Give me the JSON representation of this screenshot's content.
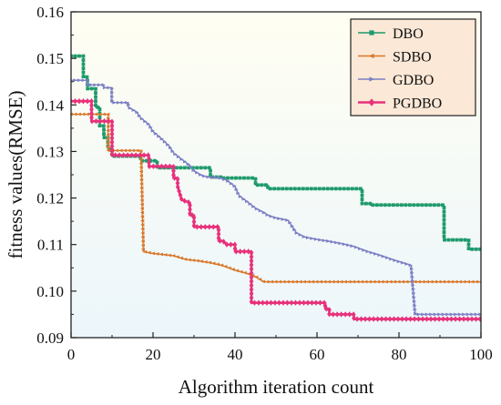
{
  "chart_data": {
    "type": "line",
    "title": "",
    "xlabel": "Algorithm iteration count",
    "ylabel": "fitness values(RMSE)",
    "xlim": [
      0,
      100
    ],
    "ylim": [
      0.09,
      0.16
    ],
    "x_ticks": [
      "0",
      "20",
      "40",
      "60",
      "80",
      "100"
    ],
    "y_ticks": [
      "0.09",
      "0.10",
      "0.11",
      "0.12",
      "0.13",
      "0.14",
      "0.15",
      "0.16"
    ],
    "grid": false,
    "legend_position": "top-right",
    "background": "light gradient (pale yellow top to pale blue bottom)",
    "series": [
      {
        "name": "DBO",
        "color": "#1f9a6c",
        "marker": "square",
        "points": [
          [
            0,
            0.1505
          ],
          [
            3,
            0.1505
          ],
          [
            3,
            0.146
          ],
          [
            4,
            0.146
          ],
          [
            4,
            0.1435
          ],
          [
            6,
            0.1435
          ],
          [
            6,
            0.1395
          ],
          [
            7,
            0.1395
          ],
          [
            7,
            0.1355
          ],
          [
            8,
            0.1355
          ],
          [
            8,
            0.133
          ],
          [
            9,
            0.133
          ],
          [
            9,
            0.1305
          ],
          [
            10,
            0.1305
          ],
          [
            10,
            0.129
          ],
          [
            17,
            0.129
          ],
          [
            17,
            0.128
          ],
          [
            21,
            0.128
          ],
          [
            21,
            0.1265
          ],
          [
            34,
            0.1265
          ],
          [
            34,
            0.1245
          ],
          [
            37,
            0.1245
          ],
          [
            37,
            0.1243
          ],
          [
            45,
            0.1243
          ],
          [
            45,
            0.1228
          ],
          [
            48,
            0.1228
          ],
          [
            48,
            0.122
          ],
          [
            71,
            0.122
          ],
          [
            71,
            0.1188
          ],
          [
            73,
            0.1188
          ],
          [
            73,
            0.1185
          ],
          [
            91,
            0.1185
          ],
          [
            91,
            0.111
          ],
          [
            97,
            0.111
          ],
          [
            97,
            0.109
          ],
          [
            100,
            0.109
          ]
        ]
      },
      {
        "name": "SDBO",
        "color": "#d9772a",
        "marker": "triangle-left",
        "points": [
          [
            0,
            0.138
          ],
          [
            9,
            0.138
          ],
          [
            9,
            0.1302
          ],
          [
            17,
            0.1302
          ],
          [
            17.6,
            0.1085
          ],
          [
            20,
            0.1081
          ],
          [
            25,
            0.1076
          ],
          [
            28,
            0.1068
          ],
          [
            31,
            0.1065
          ],
          [
            34,
            0.1061
          ],
          [
            37,
            0.1055
          ],
          [
            40,
            0.1045
          ],
          [
            43,
            0.1038
          ],
          [
            45,
            0.1031
          ],
          [
            47,
            0.102
          ],
          [
            100,
            0.102
          ]
        ]
      },
      {
        "name": "GDBO",
        "color": "#7b7fc4",
        "marker": "triangle-right",
        "points": [
          [
            0,
            0.1453
          ],
          [
            4,
            0.1453
          ],
          [
            4,
            0.1443
          ],
          [
            8,
            0.1443
          ],
          [
            8,
            0.1437
          ],
          [
            10,
            0.1437
          ],
          [
            10,
            0.1405
          ],
          [
            14,
            0.1405
          ],
          [
            14,
            0.1395
          ],
          [
            16,
            0.1385
          ],
          [
            17,
            0.1372
          ],
          [
            19,
            0.1358
          ],
          [
            20,
            0.1343
          ],
          [
            22,
            0.1328
          ],
          [
            24,
            0.1311
          ],
          [
            25,
            0.1297
          ],
          [
            27,
            0.1283
          ],
          [
            29,
            0.127
          ],
          [
            30,
            0.1258
          ],
          [
            32,
            0.1248
          ],
          [
            34,
            0.1244
          ],
          [
            36,
            0.1244
          ],
          [
            38,
            0.1238
          ],
          [
            40,
            0.1225
          ],
          [
            41,
            0.1205
          ],
          [
            43,
            0.1192
          ],
          [
            45,
            0.1178
          ],
          [
            47,
            0.1169
          ],
          [
            48,
            0.1163
          ],
          [
            50,
            0.1157
          ],
          [
            53,
            0.1152
          ],
          [
            55,
            0.1125
          ],
          [
            57,
            0.1116
          ],
          [
            60,
            0.1111
          ],
          [
            63,
            0.1107
          ],
          [
            66,
            0.1102
          ],
          [
            69,
            0.1096
          ],
          [
            72,
            0.1086
          ],
          [
            75,
            0.1078
          ],
          [
            79,
            0.1066
          ],
          [
            82,
            0.1058
          ],
          [
            83,
            0.1055
          ],
          [
            84,
            0.095
          ],
          [
            100,
            0.095
          ]
        ]
      },
      {
        "name": "PGDBO",
        "color": "#e8317b",
        "marker": "diamond",
        "points": [
          [
            0,
            0.1408
          ],
          [
            5,
            0.1408
          ],
          [
            5,
            0.1365
          ],
          [
            10,
            0.1365
          ],
          [
            10,
            0.1292
          ],
          [
            19,
            0.1292
          ],
          [
            19,
            0.1268
          ],
          [
            25,
            0.1268
          ],
          [
            25,
            0.1243
          ],
          [
            26,
            0.1243
          ],
          [
            26,
            0.1225
          ],
          [
            27,
            0.1196
          ],
          [
            29,
            0.119
          ],
          [
            29,
            0.1163
          ],
          [
            30,
            0.1163
          ],
          [
            30,
            0.1138
          ],
          [
            36,
            0.1138
          ],
          [
            36,
            0.1108
          ],
          [
            37,
            0.1108
          ],
          [
            38,
            0.11
          ],
          [
            40,
            0.11
          ],
          [
            40,
            0.1085
          ],
          [
            44,
            0.1085
          ],
          [
            44,
            0.0975
          ],
          [
            62,
            0.0975
          ],
          [
            62,
            0.0962
          ],
          [
            63,
            0.0962
          ],
          [
            63,
            0.095
          ],
          [
            69,
            0.095
          ],
          [
            69,
            0.094
          ],
          [
            100,
            0.094
          ]
        ]
      }
    ]
  }
}
